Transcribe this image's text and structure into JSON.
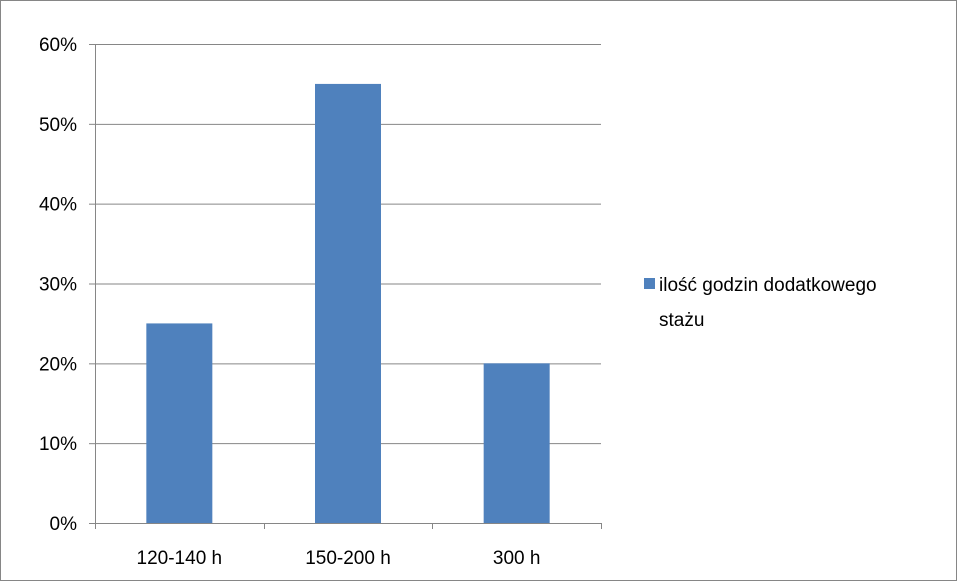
{
  "chart_data": {
    "type": "bar",
    "categories": [
      "120-140 h",
      "150-200 h",
      "300 h"
    ],
    "series": [
      {
        "name": "ilość godzin dodatkowego stażu",
        "values": [
          25,
          55,
          20
        ]
      }
    ],
    "title": "",
    "xlabel": "",
    "ylabel": "",
    "ylim": [
      0,
      60
    ],
    "yticks": [
      "0%",
      "10%",
      "20%",
      "30%",
      "40%",
      "50%",
      "60%"
    ],
    "grid": "horizontal",
    "legend_position": "right",
    "legend_lines": [
      "ilość godzin dodatkowego",
      "stażu"
    ],
    "colors": {
      "bar": "#4f81bd",
      "grid": "#868686",
      "axis": "#868686",
      "border": "#868686"
    }
  }
}
